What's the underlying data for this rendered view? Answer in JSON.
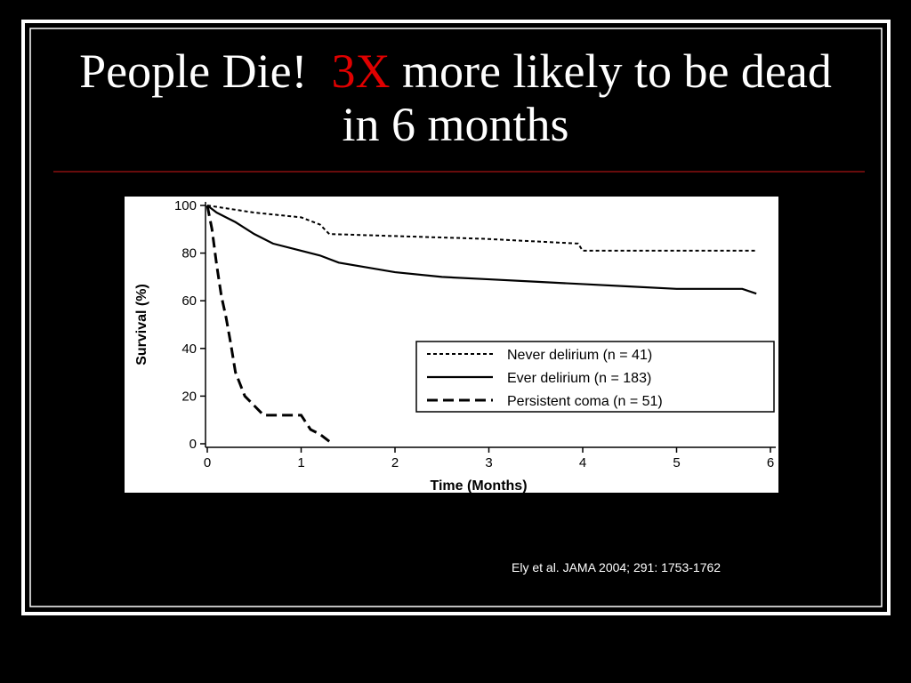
{
  "slide": {
    "title_start": "People Die!",
    "title_highlight": "3X",
    "title_end": "more likely to be dead in 6 months",
    "citation": "Ely et al. JAMA 2004; 291: 1753-1762"
  },
  "chart_data": {
    "type": "line",
    "step": true,
    "x_label": "Time (Months)",
    "y_label": "Survival (%)",
    "xlim": [
      0,
      6
    ],
    "xticks": [
      0,
      1,
      2,
      3,
      4,
      5,
      6
    ],
    "ylim": [
      0,
      100
    ],
    "yticks": [
      0,
      20,
      40,
      60,
      80,
      100
    ],
    "grid": false,
    "legend": "center right",
    "series": [
      {
        "name": "Never delirium (n = 41)",
        "color": "#000000",
        "dash": "dotted",
        "x": [
          0,
          0.5,
          1.0,
          1.2,
          1.3,
          2.95,
          3.95,
          4.0,
          5.85
        ],
        "values": [
          100,
          97,
          95,
          92,
          88,
          86,
          84,
          81,
          81
        ]
      },
      {
        "name": "Ever delirium (n = 183)",
        "color": "#000000",
        "dash": "solid",
        "x": [
          0,
          0.1,
          0.3,
          0.5,
          0.7,
          1.0,
          1.2,
          1.4,
          1.7,
          2.0,
          2.5,
          3.0,
          3.5,
          4.0,
          4.5,
          5.0,
          5.7,
          5.85
        ],
        "values": [
          100,
          97,
          93,
          88,
          84,
          81,
          79,
          76,
          74,
          72,
          70,
          69,
          68,
          67,
          66,
          65,
          65,
          63
        ]
      },
      {
        "name": "Persistent coma (n = 51)",
        "color": "#000000",
        "dash": "dashed",
        "x": [
          0,
          0.05,
          0.1,
          0.15,
          0.2,
          0.25,
          0.3,
          0.35,
          0.4,
          0.5,
          0.6,
          1.0,
          1.1,
          1.2,
          1.3
        ],
        "values": [
          100,
          90,
          75,
          62,
          53,
          42,
          30,
          25,
          20,
          16,
          12,
          12,
          6,
          4,
          1
        ]
      }
    ]
  }
}
